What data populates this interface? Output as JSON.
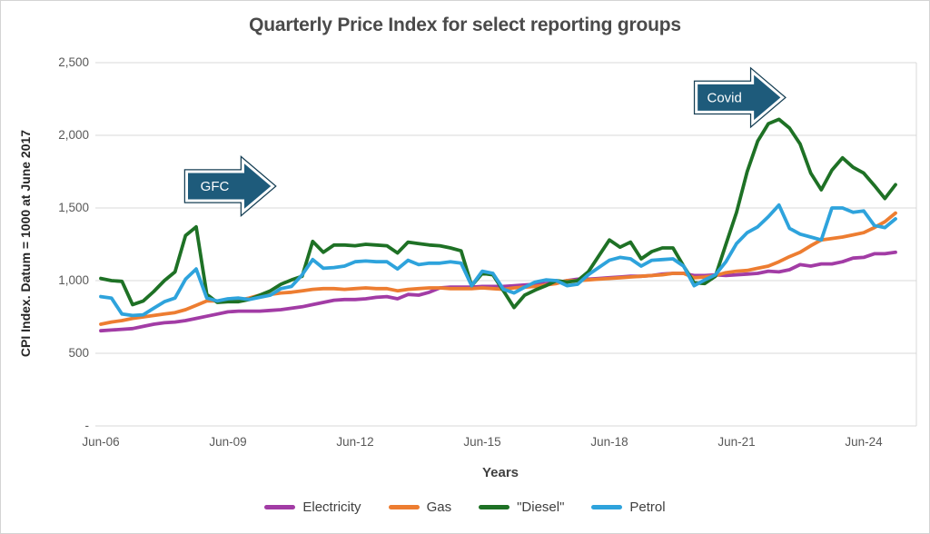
{
  "chart_data": {
    "type": "line",
    "title": "Quarterly Price Index for select reporting groups",
    "xlabel": "Years",
    "ylabel": "CPI Index. Datum = 1000 at June 2017",
    "ylim": [
      0,
      2500
    ],
    "grid": true,
    "legend_position": "bottom",
    "ytick_values": [
      0,
      500,
      1000,
      1500,
      2000,
      2500
    ],
    "ytick_labels": [
      "-",
      "500",
      "1,000",
      "1,500",
      "2,000",
      "2,500"
    ],
    "xtick_labels": [
      "Jun-06",
      "Jun-09",
      "Jun-12",
      "Jun-15",
      "Jun-18",
      "Jun-21",
      "Jun-24"
    ],
    "xtick_quarter_indices": [
      0,
      12,
      24,
      36,
      48,
      60,
      72
    ],
    "quarters": [
      "Jun-06",
      "Sep-06",
      "Dec-06",
      "Mar-07",
      "Jun-07",
      "Sep-07",
      "Dec-07",
      "Mar-08",
      "Jun-08",
      "Sep-08",
      "Dec-08",
      "Mar-09",
      "Jun-09",
      "Sep-09",
      "Dec-09",
      "Mar-10",
      "Jun-10",
      "Sep-10",
      "Dec-10",
      "Mar-11",
      "Jun-11",
      "Sep-11",
      "Dec-11",
      "Mar-12",
      "Jun-12",
      "Sep-12",
      "Dec-12",
      "Mar-13",
      "Jun-13",
      "Sep-13",
      "Dec-13",
      "Mar-14",
      "Jun-14",
      "Sep-14",
      "Dec-14",
      "Mar-15",
      "Jun-15",
      "Sep-15",
      "Dec-15",
      "Mar-16",
      "Jun-16",
      "Sep-16",
      "Dec-16",
      "Mar-17",
      "Jun-17",
      "Sep-17",
      "Dec-17",
      "Mar-18",
      "Jun-18",
      "Sep-18",
      "Dec-18",
      "Mar-19",
      "Jun-19",
      "Sep-19",
      "Dec-19",
      "Mar-20",
      "Jun-20",
      "Sep-20",
      "Dec-20",
      "Mar-21",
      "Jun-21",
      "Sep-21",
      "Dec-21",
      "Mar-22",
      "Jun-22",
      "Sep-22",
      "Dec-22",
      "Mar-23",
      "Jun-23",
      "Sep-23",
      "Dec-23",
      "Mar-24",
      "Jun-24",
      "Sep-24",
      "Dec-24",
      "Mar-25"
    ],
    "series": [
      {
        "name": "Electricity",
        "color": "#A23CA5",
        "values": [
          655,
          660,
          665,
          670,
          685,
          700,
          710,
          715,
          725,
          740,
          755,
          770,
          785,
          790,
          790,
          790,
          795,
          800,
          810,
          820,
          835,
          850,
          865,
          870,
          870,
          875,
          885,
          890,
          875,
          905,
          900,
          920,
          950,
          955,
          955,
          955,
          960,
          960,
          960,
          965,
          970,
          975,
          980,
          985,
          1000,
          1010,
          1010,
          1015,
          1020,
          1025,
          1030,
          1030,
          1035,
          1045,
          1050,
          1050,
          1035,
          1035,
          1040,
          1035,
          1040,
          1045,
          1050,
          1065,
          1060,
          1075,
          1110,
          1100,
          1115,
          1115,
          1130,
          1155,
          1160,
          1185,
          1185,
          1195
        ]
      },
      {
        "name": "Gas",
        "color": "#ED7D31",
        "values": [
          700,
          715,
          725,
          740,
          750,
          760,
          770,
          780,
          800,
          830,
          860,
          860,
          860,
          865,
          880,
          900,
          905,
          915,
          920,
          930,
          940,
          945,
          945,
          940,
          945,
          950,
          945,
          945,
          930,
          940,
          945,
          950,
          950,
          945,
          945,
          945,
          950,
          945,
          940,
          950,
          955,
          960,
          970,
          980,
          1000,
          1000,
          1005,
          1010,
          1015,
          1020,
          1025,
          1030,
          1035,
          1040,
          1050,
          1050,
          1020,
          1025,
          1035,
          1055,
          1065,
          1070,
          1085,
          1100,
          1130,
          1165,
          1195,
          1240,
          1280,
          1290,
          1300,
          1315,
          1330,
          1365,
          1405,
          1465
        ]
      },
      {
        "name": "\"Diesel\"",
        "color": "#1E7125",
        "values": [
          1015,
          1000,
          995,
          835,
          860,
          925,
          1000,
          1060,
          1310,
          1370,
          905,
          850,
          855,
          855,
          870,
          900,
          930,
          975,
          1005,
          1030,
          1270,
          1195,
          1245,
          1245,
          1240,
          1250,
          1245,
          1240,
          1190,
          1265,
          1255,
          1245,
          1240,
          1225,
          1205,
          965,
          1050,
          1040,
          930,
          815,
          900,
          935,
          965,
          1000,
          990,
          1000,
          1060,
          1170,
          1280,
          1230,
          1265,
          1150,
          1200,
          1225,
          1225,
          1100,
          985,
          980,
          1030,
          1250,
          1470,
          1750,
          1960,
          2080,
          2110,
          2050,
          1940,
          1740,
          1625,
          1760,
          1845,
          1780,
          1740,
          1655,
          1565,
          1660
        ]
      },
      {
        "name": "Petrol",
        "color": "#2EA3DC",
        "values": [
          890,
          880,
          770,
          760,
          765,
          810,
          855,
          880,
          1010,
          1080,
          880,
          860,
          875,
          880,
          870,
          885,
          900,
          945,
          960,
          1040,
          1145,
          1085,
          1090,
          1100,
          1130,
          1135,
          1130,
          1130,
          1080,
          1140,
          1110,
          1120,
          1120,
          1130,
          1120,
          965,
          1065,
          1050,
          940,
          915,
          955,
          990,
          1005,
          1000,
          965,
          975,
          1040,
          1090,
          1140,
          1160,
          1150,
          1100,
          1140,
          1145,
          1150,
          1100,
          965,
          1005,
          1040,
          1130,
          1255,
          1330,
          1370,
          1440,
          1520,
          1360,
          1320,
          1300,
          1280,
          1500,
          1500,
          1470,
          1480,
          1380,
          1365,
          1425
        ]
      }
    ],
    "annotations": [
      {
        "label": "GFC",
        "quarter_index": 8.1,
        "value": 1650
      },
      {
        "label": "Covid",
        "quarter_index": 56.2,
        "value": 2260
      }
    ],
    "annotation_colors": {
      "fill": "#1E5B7B",
      "inner_stroke": "#FFFFFF",
      "outer_stroke": "#163F54",
      "text": "#FFFFFF"
    },
    "grid_color": "#D9D9D9"
  }
}
